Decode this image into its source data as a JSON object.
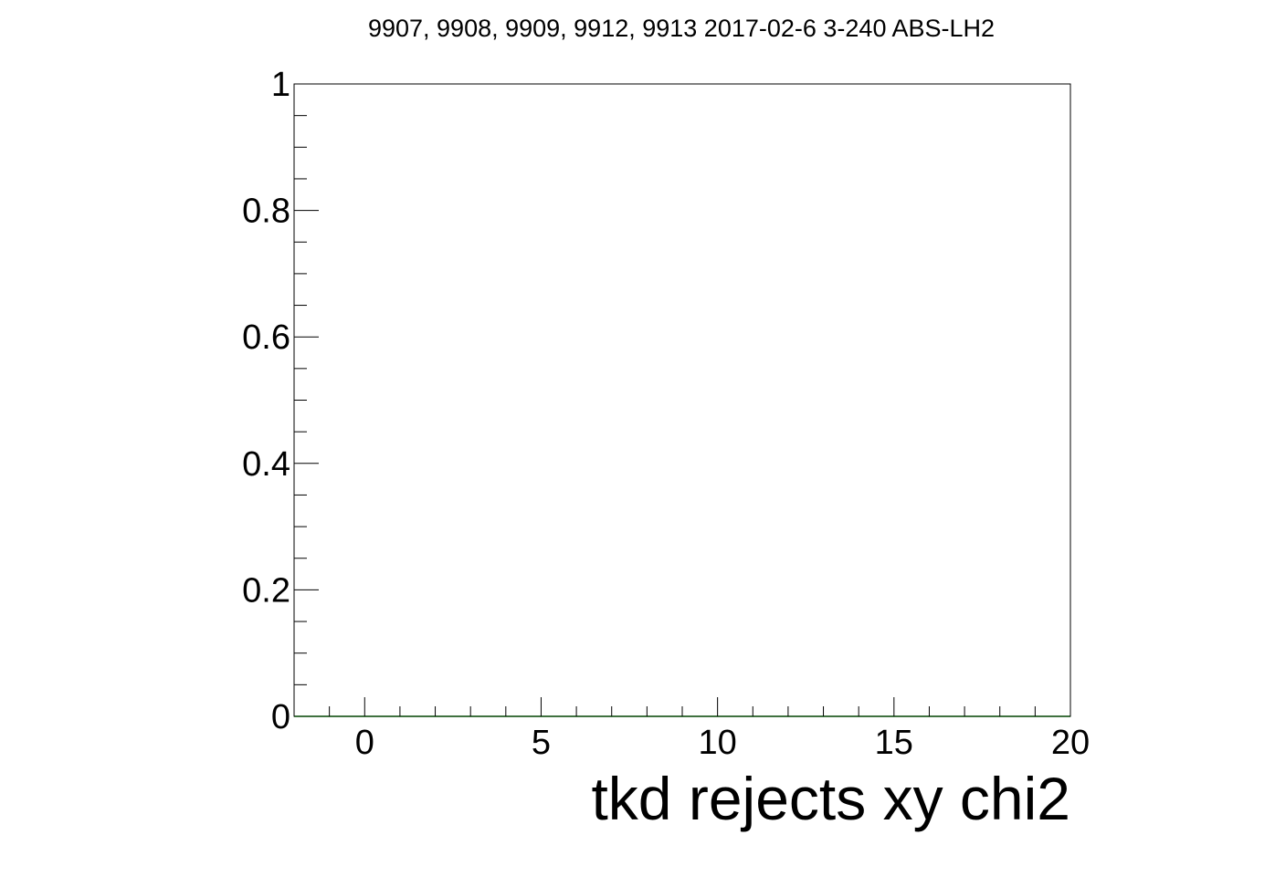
{
  "chart_data": {
    "type": "line",
    "title": "9907, 9908, 9909, 9912, 9913 2017-02-6 3-240 ABS-LH2",
    "xlabel": "tkd rejects xy chi2",
    "ylabel": "",
    "xlim": [
      -2,
      20
    ],
    "ylim": [
      0,
      1
    ],
    "x_ticks": [
      0,
      5,
      10,
      15,
      20
    ],
    "y_ticks": [
      0,
      0.2,
      0.4,
      0.6,
      0.8,
      1
    ],
    "x_tick_labels": [
      "0",
      "5",
      "10",
      "15",
      "20"
    ],
    "y_tick_labels": [
      "0",
      "0.2",
      "0.4",
      "0.6",
      "0.8",
      "1"
    ],
    "grid": false,
    "series": [
      {
        "color": "#00cc00",
        "x": [
          -2,
          20
        ],
        "values": [
          0,
          0
        ]
      }
    ]
  }
}
